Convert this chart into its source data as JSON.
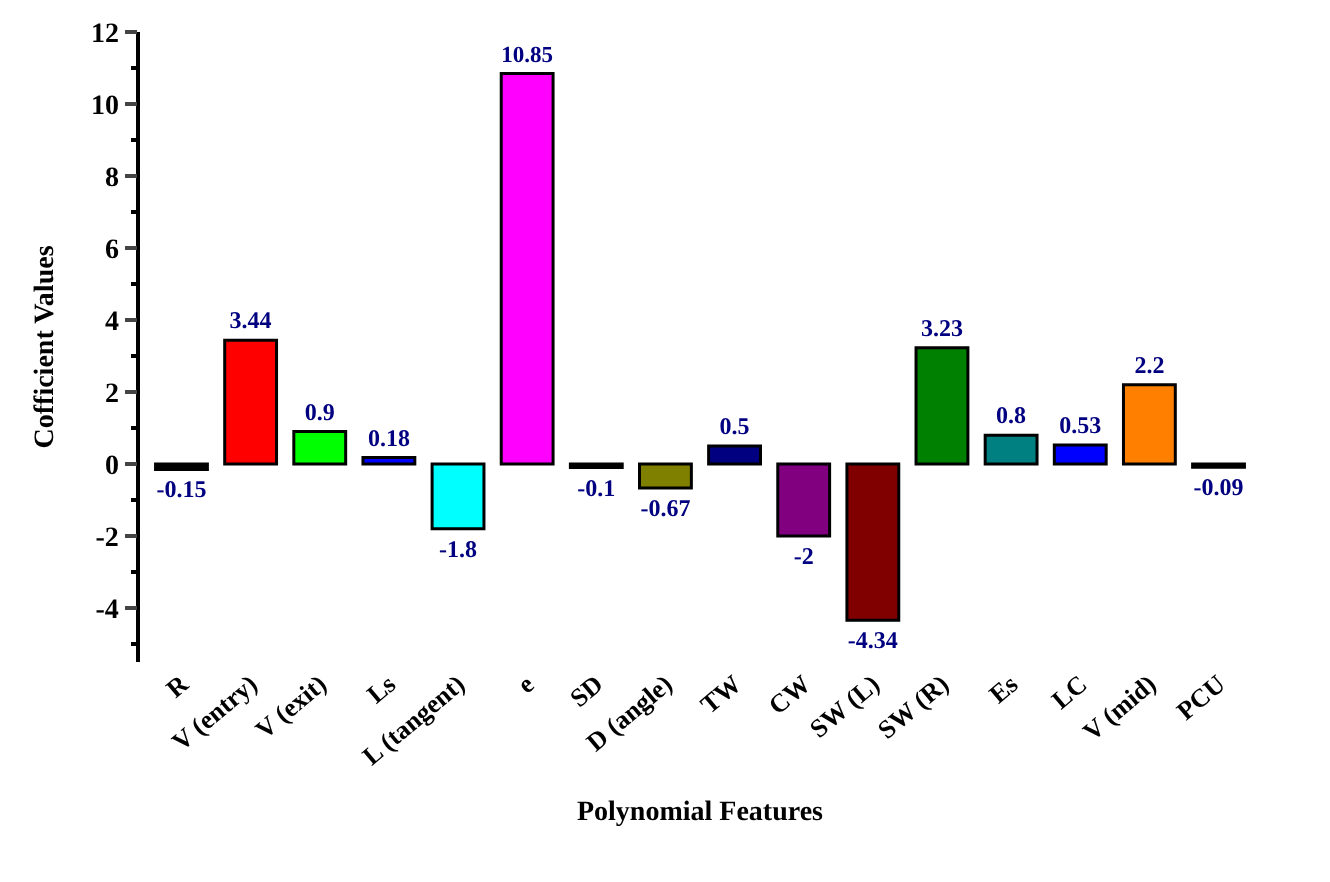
{
  "chart_data": {
    "type": "bar",
    "xlabel": "Polynomial Features",
    "ylabel": "Cofficient Values",
    "categories": [
      "R",
      "V (entry)",
      "V (exit)",
      "Ls",
      "L (tangent)",
      "e",
      "SD",
      "D (angle)",
      "TW",
      "CW",
      "SW (L)",
      "SW (R)",
      "Es",
      "LC",
      "V (mid)",
      "PCU"
    ],
    "values": [
      -0.15,
      3.44,
      0.9,
      0.18,
      -1.8,
      10.85,
      -0.1,
      -0.67,
      0.5,
      -2,
      -4.34,
      3.23,
      0.8,
      0.53,
      2.2,
      -0.09
    ],
    "colors": [
      "#000000",
      "#ff0000",
      "#00ff00",
      "#0000ff",
      "#00ffff",
      "#ff00ff",
      "#000000",
      "#808000",
      "#000080",
      "#800080",
      "#800000",
      "#008000",
      "#008080",
      "#0000ff",
      "#ff8000",
      "#000000"
    ],
    "ylim": [
      -5.5,
      12
    ],
    "yticks": [
      -4,
      -2,
      0,
      2,
      4,
      6,
      8,
      10,
      12
    ],
    "data_labels": true
  }
}
